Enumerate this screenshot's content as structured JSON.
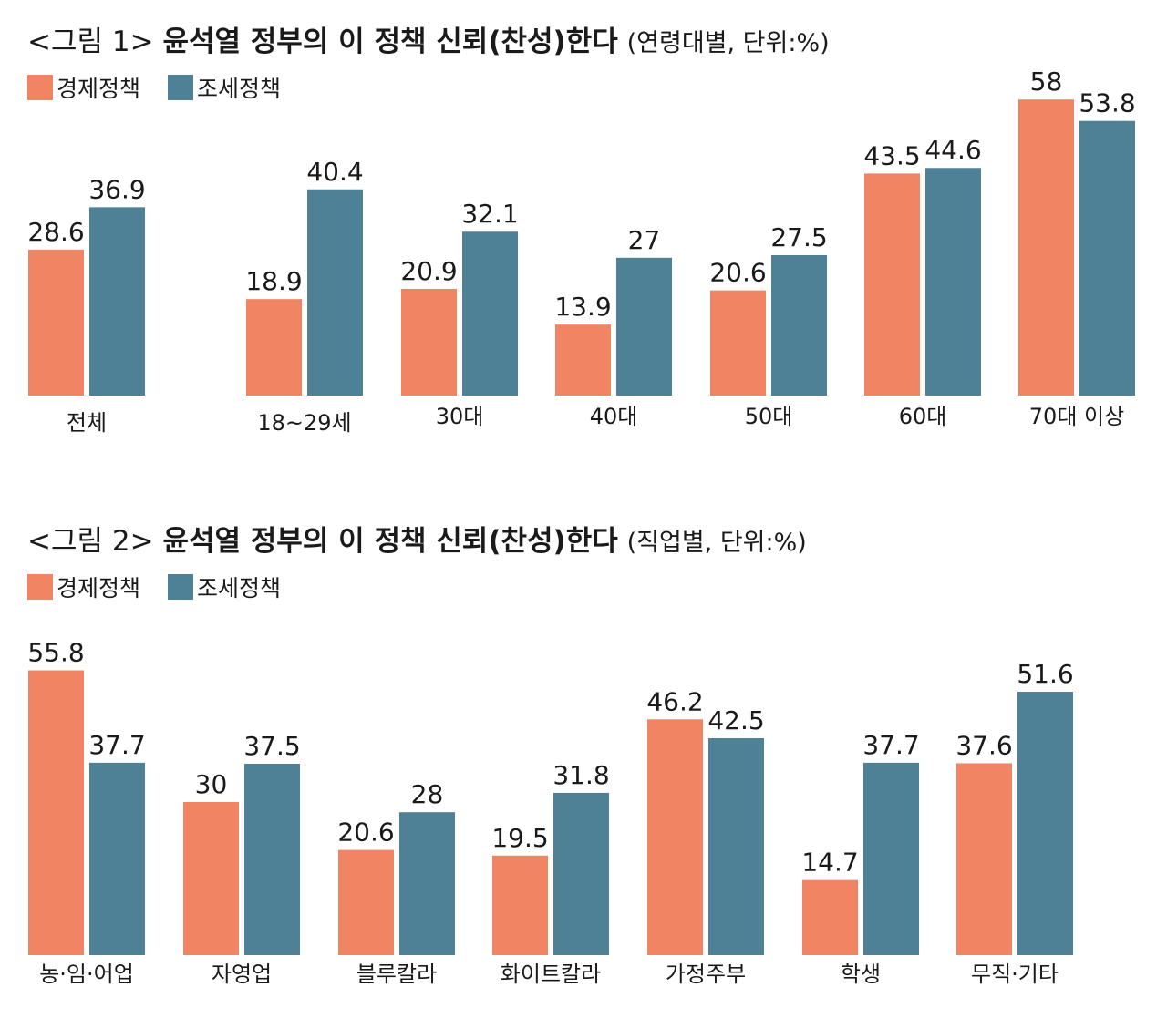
{
  "colors": {
    "economic": "#F08463",
    "tax": "#4E8096"
  },
  "charts": [
    {
      "title_prefix": "<그림 1>",
      "title_main": "윤석열 정부의 이 정책 신뢰(찬성)한다",
      "title_unit": "(연령대별, 단위:%)",
      "legend": [
        "경제정책",
        "조세정책"
      ]
    },
    {
      "title_prefix": "<그림 2>",
      "title_main": "윤석열 정부의 이 정책 신뢰(찬성)한다",
      "title_unit": "(직업별, 단위:%)",
      "legend": [
        "경제정책",
        "조세정책"
      ]
    }
  ],
  "chart_data": [
    {
      "type": "bar",
      "title": "<그림 1> 윤석열 정부의 이 정책 신뢰(찬성)한다 (연령대별, 단위:%)",
      "categories": [
        "전체",
        "18~29세",
        "30대",
        "40대",
        "50대",
        "60대",
        "70대 이상"
      ],
      "series": [
        {
          "name": "경제정책",
          "values": [
            28.6,
            18.9,
            20.9,
            13.9,
            20.6,
            43.5,
            58
          ]
        },
        {
          "name": "조세정책",
          "values": [
            36.9,
            40.4,
            32.1,
            27,
            27.5,
            44.6,
            53.8
          ]
        }
      ],
      "ylim": [
        0,
        60
      ],
      "grid": false,
      "legend_position": "top-left"
    },
    {
      "type": "bar",
      "title": "<그림 2> 윤석열 정부의 이 정책 신뢰(찬성)한다 (직업별, 단위:%)",
      "categories": [
        "농·임·어업",
        "자영업",
        "블루칼라",
        "화이트칼라",
        "가정주부",
        "학생",
        "무직·기타"
      ],
      "series": [
        {
          "name": "경제정책",
          "values": [
            55.8,
            30,
            20.6,
            19.5,
            46.2,
            14.7,
            37.6
          ]
        },
        {
          "name": "조세정책",
          "values": [
            37.7,
            37.5,
            28,
            31.8,
            42.5,
            37.7,
            51.6
          ]
        }
      ],
      "ylim": [
        0,
        60
      ],
      "grid": false,
      "legend_position": "top-left"
    }
  ]
}
